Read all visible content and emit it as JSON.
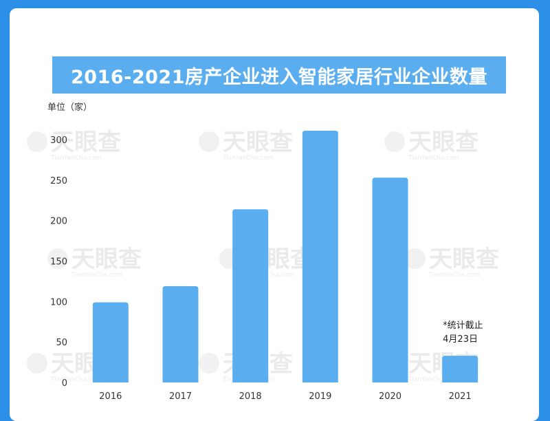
{
  "chart_data": {
    "type": "bar",
    "title": "2016-2021房产企业进入智能家居行业企业数量",
    "unit_label": "单位（家）",
    "categories": [
      "2016",
      "2017",
      "2018",
      "2019",
      "2020",
      "2021"
    ],
    "values": [
      99,
      119,
      214,
      311,
      253,
      33
    ],
    "ylim": [
      0,
      300
    ],
    "yticks": [
      0,
      50,
      100,
      150,
      200,
      250,
      300
    ],
    "bar_color": "#5aaef0",
    "grid": false,
    "legend": "none",
    "annotation": {
      "category": "2021",
      "lines": [
        "*统计截止",
        "4月23日"
      ]
    }
  },
  "watermark": {
    "text": "天眼查",
    "sub": "TianYanCha.com"
  },
  "colors": {
    "background": "#2b8fe8",
    "card": "#ffffff",
    "title_bar": "#5aaef0",
    "title_text": "#ffffff"
  }
}
